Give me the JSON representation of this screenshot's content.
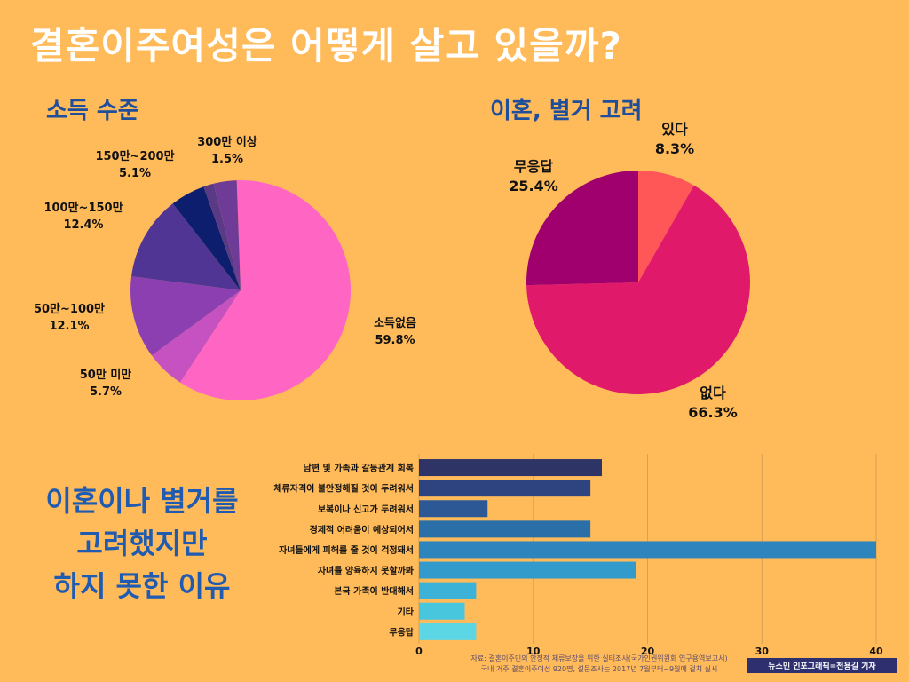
{
  "title": "결혼이주여성은 어떻게 살고 있을까?",
  "side_title": [
    "이혼이나 별거를",
    "고려했지만",
    "하지 못한 이유"
  ],
  "chart_data": [
    {
      "type": "pie",
      "title": "소득 수준",
      "slices": [
        {
          "label": "소득없음",
          "value": 59.8,
          "value_label": "59.8%",
          "color": "#FF66C4"
        },
        {
          "label": "50만 미만",
          "value": 5.7,
          "value_label": "5.7%",
          "color": "#C552C0"
        },
        {
          "label": "50만~100만",
          "value": 12.1,
          "value_label": "12.1%",
          "color": "#8C3FB0"
        },
        {
          "label": "100만~150만",
          "value": 12.4,
          "value_label": "12.4%",
          "color": "#513594"
        },
        {
          "label": "150만~200만",
          "value": 5.1,
          "value_label": "5.1%",
          "color": "#0E1E6E"
        },
        {
          "label": "300만 이상",
          "value": 1.5,
          "value_label": "1.5%",
          "color": "#5A3A86"
        },
        {
          "label": "",
          "value": 3.4,
          "value_label": "",
          "color": "#6E3C96"
        }
      ]
    },
    {
      "type": "pie",
      "title": "이혼, 별거 고려",
      "slices": [
        {
          "label": "있다",
          "value": 8.3,
          "value_label": "8.3%",
          "color": "#FF5757"
        },
        {
          "label": "없다",
          "value": 66.3,
          "value_label": "66.3%",
          "color": "#E0196A"
        },
        {
          "label": "무응답",
          "value": 25.4,
          "value_label": "25.4%",
          "color": "#A0006E"
        }
      ]
    },
    {
      "type": "bar",
      "orientation": "horizontal",
      "categories": [
        "남편 및 가족과 갈등관계 회복",
        "체류자격이 불안정해질 것이 두려워서",
        "보복이나 신고가 두려워서",
        "경제적 어려움이 예상되어서",
        "자녀들에게 피해를 줄 것이 걱정돼서",
        "자녀를 양육하지 못할까봐",
        "본국 가족이 반대해서",
        "기타",
        "무응답"
      ],
      "values": [
        16,
        15,
        6,
        15,
        40,
        19,
        5,
        4,
        5
      ],
      "colors": [
        "#2F3466",
        "#2D4480",
        "#2C5996",
        "#2B6FA8",
        "#2E85BD",
        "#339BCC",
        "#3CB2D8",
        "#48C6DE",
        "#5CD6E4"
      ],
      "xticks": [
        0,
        10,
        20,
        30,
        40
      ],
      "xlim": [
        0,
        40
      ],
      "grid": true
    }
  ],
  "footer": {
    "line1": "자료: 결혼이주민의 안정적 체류보장을 위한 실태조사(국가인권위원회 연구용역보고서)",
    "line2": "국내 거주 결혼이주여성 920명, 설문조사는 2017년 7월부터~9월에 걸쳐 실시"
  },
  "credit": "뉴스민 인포그래픽=천용길 기자"
}
